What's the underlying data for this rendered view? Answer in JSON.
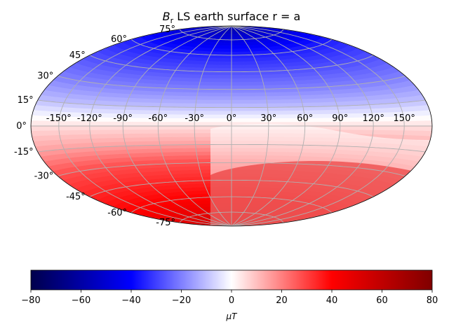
{
  "chart_data": {
    "type": "heatmap",
    "projection": "hammer",
    "title_prefix": "B",
    "title_subscript": "r",
    "title_suffix": " LS earth surface r = a",
    "lon_ticks": [
      "-150°",
      "-120°",
      "-90°",
      "-60°",
      "-30°",
      "0°",
      "30°",
      "60°",
      "90°",
      "120°",
      "150°"
    ],
    "lon_values": [
      -150,
      -120,
      -90,
      -60,
      -30,
      0,
      30,
      60,
      90,
      120,
      150
    ],
    "lat_ticks": [
      "75°",
      "60°",
      "45°",
      "30°",
      "15°",
      "0°",
      "-15°",
      "-30°",
      "-45°",
      "-60°",
      "-75°"
    ],
    "lat_values": [
      75,
      60,
      45,
      30,
      15,
      0,
      -15,
      -30,
      -45,
      -60,
      -75
    ],
    "grid": true,
    "colormap": "seismic",
    "colorbar": {
      "min": -80,
      "max": 80,
      "ticks": [
        "−80",
        "−60",
        "−40",
        "−20",
        "0",
        "20",
        "40",
        "60",
        "80"
      ],
      "tick_values": [
        -80,
        -60,
        -40,
        -20,
        0,
        20,
        40,
        60,
        80
      ],
      "label": "μT",
      "orientation": "horizontal"
    },
    "field_samples": [
      {
        "lat": 90,
        "value": -60
      },
      {
        "lat": 60,
        "value": -35
      },
      {
        "lat": 30,
        "value": -20
      },
      {
        "lat": 15,
        "value": -10
      },
      {
        "lat": 0,
        "value": 5
      },
      {
        "lat": -15,
        "value": 15
      },
      {
        "lat": -30,
        "value": 28
      },
      {
        "lat": -60,
        "value": 40
      },
      {
        "lat": -90,
        "value": 55
      }
    ]
  }
}
